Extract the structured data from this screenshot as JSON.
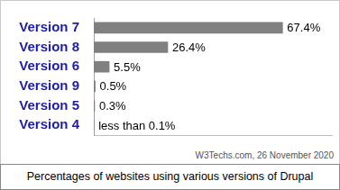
{
  "chart_data": {
    "type": "bar",
    "orientation": "horizontal",
    "title": "Percentages of websites using various versions of Drupal",
    "annotations": [
      "W3Techs.com, 26 November 2020"
    ],
    "categories": [
      "Version 7",
      "Version 8",
      "Version 6",
      "Version 9",
      "Version 5",
      "Version 4"
    ],
    "values": [
      67.4,
      26.4,
      5.5,
      0.5,
      0.3,
      0.05
    ],
    "value_labels": [
      "67.4%",
      "26.4%",
      "5.5%",
      "0.5%",
      "0.3%",
      "less than 0.1%"
    ],
    "color": "#808080",
    "xlim": [
      0,
      85
    ],
    "grid": false,
    "data_labels": true,
    "tick_labels": "y"
  }
}
